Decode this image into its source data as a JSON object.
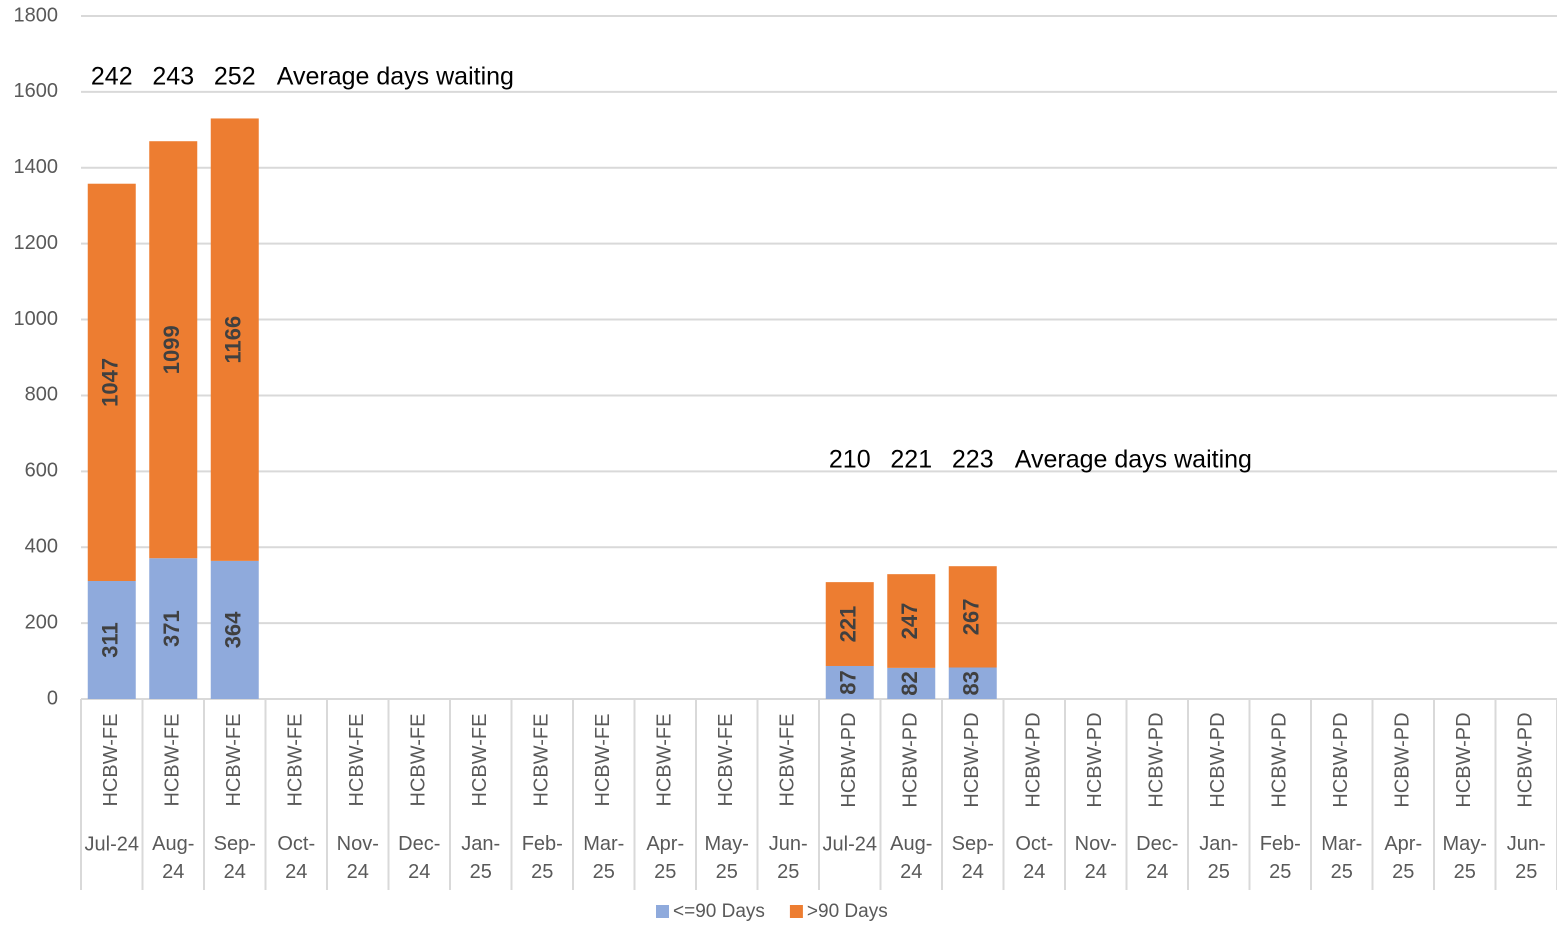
{
  "chart_data": {
    "type": "stacked_bar",
    "categories": [
      "Jul-24",
      "Aug-24",
      "Sep-24",
      "Oct-24",
      "Nov-24",
      "Dec-24",
      "Jan-25",
      "Feb-25",
      "Mar-25",
      "Apr-25",
      "May-25",
      "Jun-25",
      "Jul-24",
      "Aug-24",
      "Sep-24",
      "Oct-24",
      "Nov-24",
      "Dec-24",
      "Jan-25",
      "Feb-25",
      "Mar-25",
      "Apr-25",
      "May-25",
      "Jun-25"
    ],
    "category_groups": [
      "HCBW-FE",
      "HCBW-FE",
      "HCBW-FE",
      "HCBW-FE",
      "HCBW-FE",
      "HCBW-FE",
      "HCBW-FE",
      "HCBW-FE",
      "HCBW-FE",
      "HCBW-FE",
      "HCBW-FE",
      "HCBW-FE",
      "HCBW-PD",
      "HCBW-PD",
      "HCBW-PD",
      "HCBW-PD",
      "HCBW-PD",
      "HCBW-PD",
      "HCBW-PD",
      "HCBW-PD",
      "HCBW-PD",
      "HCBW-PD",
      "HCBW-PD",
      "HCBW-PD"
    ],
    "series": [
      {
        "name": "<=90 Days",
        "color": "#8faadc",
        "values": [
          311,
          371,
          364,
          null,
          null,
          null,
          null,
          null,
          null,
          null,
          null,
          null,
          87,
          82,
          83,
          null,
          null,
          null,
          null,
          null,
          null,
          null,
          null,
          null
        ]
      },
      {
        "name": ">90 Days",
        "color": "#ed7d31",
        "values": [
          1047,
          1099,
          1166,
          null,
          null,
          null,
          null,
          null,
          null,
          null,
          null,
          null,
          221,
          247,
          267,
          null,
          null,
          null,
          null,
          null,
          null,
          null,
          null,
          null
        ]
      }
    ],
    "average_days": {
      "name": "Average days waiting",
      "values": [
        242,
        243,
        252,
        null,
        null,
        null,
        null,
        null,
        null,
        null,
        null,
        null,
        210,
        221,
        223,
        null,
        null,
        null,
        null,
        null,
        null,
        null,
        null,
        null
      ]
    },
    "ylim": [
      0,
      1800
    ],
    "yticks": [
      0,
      200,
      400,
      600,
      800,
      1000,
      1200,
      1400,
      1600,
      1800
    ],
    "grid": true,
    "legend": "bottom"
  }
}
